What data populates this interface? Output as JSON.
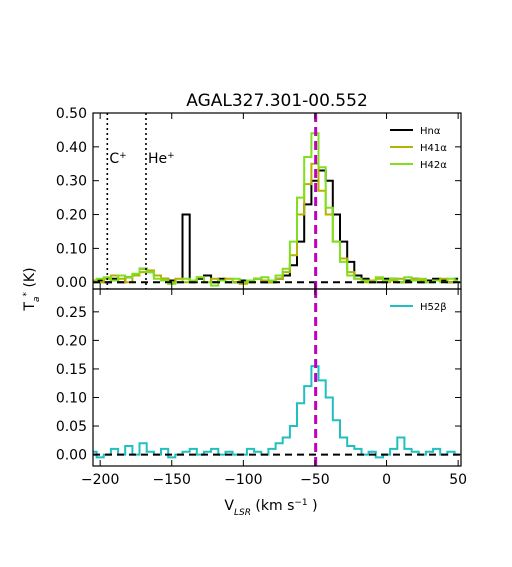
{
  "chart_data": [
    {
      "type": "line",
      "panel": "top",
      "title": "AGAL327.301-00.552",
      "xlabel": "V",
      "xlabel_sub": "LSR",
      "xlabel_unit": "(km s",
      "xlabel_unit_sup": "−1",
      "xlabel_unit_end": ")",
      "ylabel": "T",
      "ylabel_sub": "a",
      "ylabel_sup": "*",
      "ylabel_unit": "(K)",
      "xlim": [
        -205,
        52
      ],
      "ylim": [
        -0.02,
        0.5
      ],
      "xticks": [
        -200,
        -150,
        -100,
        -50,
        0,
        50
      ],
      "xtick_labels": [
        "−200",
        "−150",
        "−100",
        "−50",
        "0",
        "50"
      ],
      "yticks": [
        0.0,
        0.1,
        0.2,
        0.3,
        0.4,
        0.5
      ],
      "ytick_labels": [
        "0.00",
        "0.10",
        "0.20",
        "0.30",
        "0.40",
        "0.50"
      ],
      "vertical_markers": [
        {
          "x": -195,
          "label": "C",
          "label_sup": "+",
          "style": "dotted",
          "color": "#000000"
        },
        {
          "x": -168,
          "label": "He",
          "label_sup": "+",
          "style": "dotted",
          "color": "#000000"
        },
        {
          "x": -49.5,
          "label": "",
          "style": "dashed",
          "color": "#bf00bf"
        }
      ],
      "baseline": 0.0,
      "legend_position": "top-right",
      "series": [
        {
          "name": "Hnα",
          "color": "#000000",
          "x": [
            -205,
            -200,
            -195,
            -190,
            -185,
            -180,
            -175,
            -170,
            -165,
            -160,
            -155,
            -150,
            -145,
            -140,
            -135,
            -130,
            -125,
            -120,
            -115,
            -110,
            -105,
            -100,
            -95,
            -90,
            -85,
            -80,
            -75,
            -70,
            -65,
            -60,
            -55,
            -50,
            -45,
            -40,
            -35,
            -30,
            -25,
            -20,
            -15,
            -10,
            -5,
            0,
            5,
            10,
            15,
            20,
            25,
            30,
            35,
            40,
            45,
            50
          ],
          "y": [
            0.0,
            0.005,
            0.0,
            0.01,
            0.0,
            0.015,
            0.02,
            0.04,
            0.03,
            0.02,
            0.01,
            0.005,
            0.0,
            0.2,
            0.0,
            0.01,
            0.02,
            0.0,
            0.01,
            0.0,
            0.0,
            0.005,
            0.0,
            0.01,
            0.0,
            0.0,
            0.01,
            0.02,
            0.05,
            0.12,
            0.23,
            0.3,
            0.33,
            0.3,
            0.2,
            0.12,
            0.06,
            0.02,
            0.01,
            0.0,
            0.0,
            0.01,
            0.01,
            0.0,
            0.005,
            0.01,
            0.0,
            0.005,
            0.01,
            0.005,
            0.0,
            0.01
          ]
        },
        {
          "name": "H41α",
          "color": "#b5b300",
          "x": [
            -205,
            -200,
            -195,
            -190,
            -185,
            -180,
            -175,
            -170,
            -165,
            -160,
            -155,
            -150,
            -145,
            -140,
            -135,
            -130,
            -125,
            -120,
            -115,
            -110,
            -105,
            -100,
            -95,
            -90,
            -85,
            -80,
            -75,
            -70,
            -65,
            -60,
            -55,
            -50,
            -45,
            -40,
            -35,
            -30,
            -25,
            -20,
            -15,
            -10,
            -5,
            0,
            5,
            10,
            15,
            20,
            25,
            30,
            35,
            40,
            45,
            50
          ],
          "y": [
            0.005,
            0.0,
            0.01,
            0.02,
            0.01,
            0.0,
            0.02,
            0.03,
            0.035,
            0.02,
            0.01,
            0.0,
            0.01,
            0.0,
            0.005,
            0.015,
            0.0,
            0.01,
            0.005,
            0.01,
            0.0,
            -0.005,
            0.0,
            0.01,
            0.005,
            0.0,
            0.01,
            0.03,
            0.08,
            0.2,
            0.29,
            0.35,
            0.27,
            0.2,
            0.12,
            0.07,
            0.03,
            0.01,
            0.0,
            0.005,
            0.01,
            0.0,
            0.005,
            0.01,
            0.0,
            0.01,
            0.005,
            0.0,
            0.005,
            0.01,
            0.0,
            0.005
          ]
        },
        {
          "name": "H42α",
          "color": "#80e020",
          "x": [
            -205,
            -200,
            -195,
            -190,
            -185,
            -180,
            -175,
            -170,
            -165,
            -160,
            -155,
            -150,
            -145,
            -140,
            -135,
            -130,
            -125,
            -120,
            -115,
            -110,
            -105,
            -100,
            -95,
            -90,
            -85,
            -80,
            -75,
            -70,
            -65,
            -60,
            -55,
            -50,
            -45,
            -40,
            -35,
            -30,
            -25,
            -20,
            -15,
            -10,
            -5,
            0,
            5,
            10,
            15,
            20,
            25,
            30,
            35,
            40,
            45,
            50
          ],
          "y": [
            0.0,
            0.01,
            0.015,
            0.005,
            0.02,
            0.015,
            0.025,
            0.04,
            0.03,
            0.01,
            0.005,
            -0.005,
            0.0,
            0.01,
            0.005,
            0.015,
            0.0,
            -0.01,
            0.005,
            0.0,
            0.01,
            0.0,
            0.005,
            0.01,
            0.015,
            0.005,
            0.02,
            0.04,
            0.12,
            0.25,
            0.37,
            0.44,
            0.34,
            0.22,
            0.12,
            0.06,
            0.02,
            0.01,
            0.005,
            0.0,
            0.015,
            0.005,
            0.01,
            0.0,
            0.015,
            0.005,
            0.01,
            0.0,
            0.005,
            0.0,
            0.01,
            0.005
          ]
        }
      ]
    },
    {
      "type": "line",
      "panel": "bottom",
      "xlim": [
        -205,
        52
      ],
      "ylim": [
        -0.02,
        0.29
      ],
      "yticks": [
        0.0,
        0.05,
        0.1,
        0.15,
        0.2,
        0.25
      ],
      "ytick_labels": [
        "0.00",
        "0.05",
        "0.10",
        "0.15",
        "0.20",
        "0.25"
      ],
      "vertical_markers": [
        {
          "x": -49.5,
          "label": "",
          "style": "dashed",
          "color": "#bf00bf"
        }
      ],
      "baseline": 0.0,
      "legend_position": "top-right",
      "series": [
        {
          "name": "H52β",
          "color": "#20c0c0",
          "x": [
            -205,
            -200,
            -195,
            -190,
            -185,
            -180,
            -175,
            -170,
            -165,
            -160,
            -155,
            -150,
            -145,
            -140,
            -135,
            -130,
            -125,
            -120,
            -115,
            -110,
            -105,
            -100,
            -95,
            -90,
            -85,
            -80,
            -75,
            -70,
            -65,
            -60,
            -55,
            -50,
            -45,
            -40,
            -35,
            -30,
            -25,
            -20,
            -15,
            -10,
            -5,
            0,
            5,
            10,
            15,
            20,
            25,
            30,
            35,
            40,
            45,
            50
          ],
          "y": [
            0.005,
            -0.005,
            0.0,
            0.01,
            0.0,
            0.015,
            0.0,
            0.02,
            0.005,
            0.0,
            0.01,
            -0.005,
            0.0,
            0.005,
            0.01,
            0.0,
            0.005,
            0.01,
            0.0,
            0.005,
            0.0,
            0.0,
            0.01,
            0.005,
            0.0,
            0.01,
            0.02,
            0.03,
            0.05,
            0.09,
            0.12,
            0.155,
            0.13,
            0.1,
            0.06,
            0.03,
            0.015,
            0.01,
            0.0,
            0.005,
            -0.005,
            0.0,
            0.01,
            0.03,
            0.01,
            0.005,
            0.0,
            0.005,
            0.01,
            0.0,
            0.005,
            0.0
          ]
        }
      ]
    }
  ]
}
